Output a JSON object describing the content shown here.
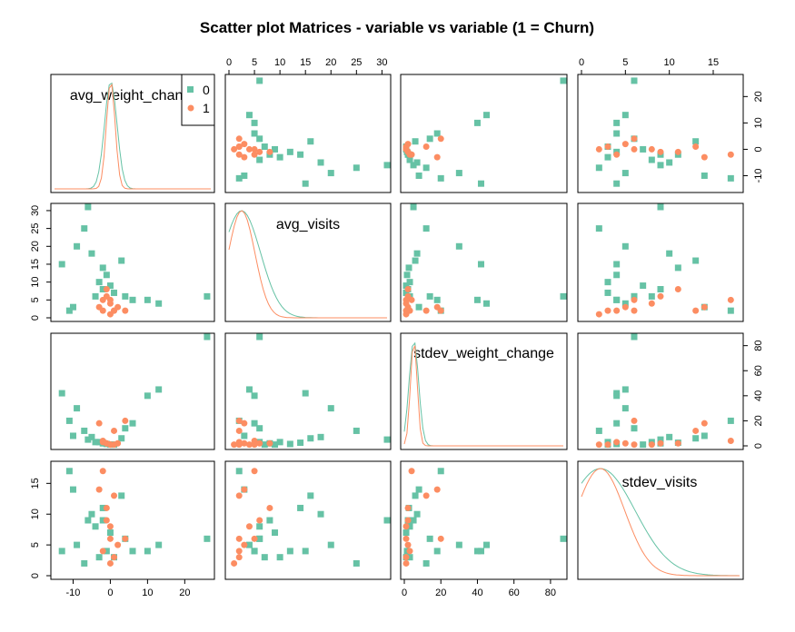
{
  "chart_data": {
    "type": "scatter",
    "title": "Scatter plot Matrices - variable vs variable (1 = Churn)",
    "variables": [
      "avg_weight_change",
      "avg_visits",
      "stdev_weight_change",
      "stdev_visits"
    ],
    "ranges": [
      [
        -15,
        27
      ],
      [
        0,
        31
      ],
      [
        0,
        87
      ],
      [
        0,
        18
      ]
    ],
    "ticks": [
      [
        -10,
        0,
        10,
        20
      ],
      [
        0,
        5,
        10,
        15,
        20,
        25,
        30
      ],
      [
        0,
        20,
        40,
        60,
        80
      ],
      [
        0,
        5,
        10,
        15
      ]
    ],
    "legend": {
      "position": "top-right of first diagonal panel",
      "entries": [
        {
          "label": "0",
          "color": "#66c2a5",
          "marker": "square"
        },
        {
          "label": "1",
          "color": "#fc8d62",
          "marker": "circle"
        }
      ]
    },
    "colors": {
      "no_churn": "#66c2a5",
      "churn": "#fc8d62"
    },
    "series": [
      {
        "name": "0",
        "color": "#66c2a5",
        "marker": "square",
        "points": [
          [
            26,
            6,
            87,
            6
          ],
          [
            -13,
            15,
            42,
            4
          ],
          [
            -9,
            20,
            30,
            5
          ],
          [
            -11,
            2,
            20,
            17
          ],
          [
            -7,
            25,
            12,
            2
          ],
          [
            -10,
            3,
            8,
            14
          ],
          [
            -6,
            31,
            5,
            9
          ],
          [
            13,
            4,
            45,
            5
          ],
          [
            10,
            5,
            40,
            4
          ],
          [
            6,
            5,
            18,
            4
          ],
          [
            4,
            6,
            14,
            6
          ],
          [
            3,
            16,
            6,
            13
          ],
          [
            -5,
            18,
            7,
            10
          ],
          [
            -3,
            10,
            3,
            3
          ],
          [
            -2,
            8,
            2,
            9
          ],
          [
            -1,
            12,
            1.5,
            4
          ],
          [
            0,
            9,
            1,
            7
          ],
          [
            -4,
            6,
            3,
            8
          ],
          [
            -2,
            14,
            2.5,
            11
          ],
          [
            1,
            7,
            1,
            3
          ]
        ]
      },
      {
        "name": "1",
        "color": "#fc8d62",
        "marker": "circle",
        "points": [
          [
            -3,
            3,
            18,
            14
          ],
          [
            1,
            2,
            12,
            13
          ],
          [
            -2,
            5,
            4,
            17
          ],
          [
            4,
            2,
            20,
            6
          ],
          [
            0,
            4,
            1,
            8
          ],
          [
            -1,
            6,
            2,
            9
          ],
          [
            -2,
            2,
            3,
            4
          ],
          [
            0,
            1,
            1,
            2
          ],
          [
            2,
            3,
            2,
            5
          ],
          [
            -1,
            8,
            2,
            11
          ],
          [
            1,
            2,
            1,
            3
          ],
          [
            0,
            5,
            1,
            6
          ]
        ]
      }
    ]
  }
}
